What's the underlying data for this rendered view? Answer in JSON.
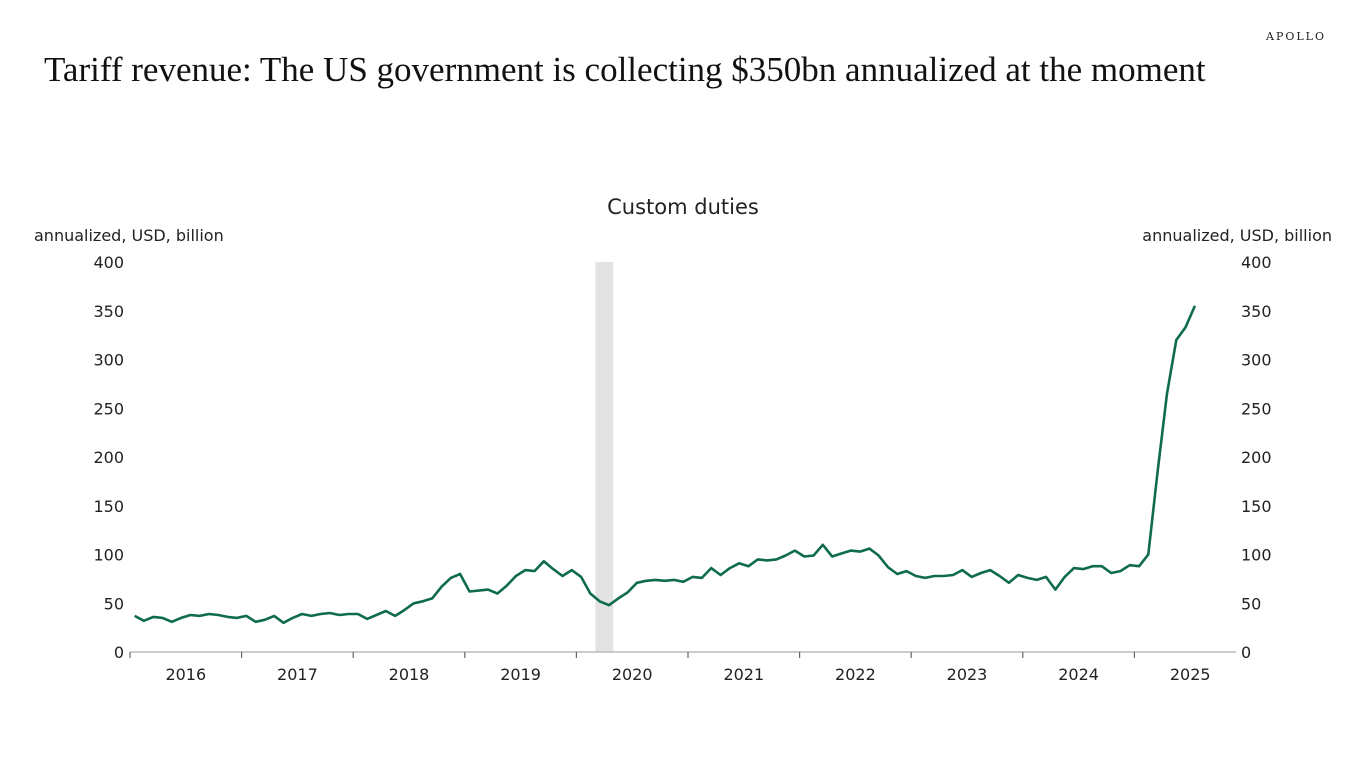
{
  "brand": "APOLLO",
  "title": "Tariff revenue: The US government is collecting $350bn annualized at the moment",
  "chart_data": {
    "type": "line",
    "title": "Custom duties",
    "ylabel_left": "annualized, USD, billion",
    "ylabel_right": "annualized, USD, billion",
    "ylim": [
      0,
      400
    ],
    "yticks": [
      0,
      50,
      100,
      150,
      200,
      250,
      300,
      350,
      400
    ],
    "xlim_years": [
      2016,
      2026
    ],
    "xtick_labels": [
      "2016",
      "2017",
      "2018",
      "2019",
      "2020",
      "2021",
      "2022",
      "2023",
      "2024",
      "2025"
    ],
    "recession_shading": {
      "start": 2020.17,
      "end": 2020.33
    },
    "start": "2016-01",
    "frequency": "monthly",
    "series": [
      {
        "name": "Custom duties",
        "color": "#0f6b4f",
        "values": [
          37,
          32,
          36,
          35,
          31,
          35,
          38,
          37,
          39,
          38,
          36,
          35,
          37,
          31,
          33,
          37,
          30,
          35,
          39,
          37,
          39,
          40,
          38,
          39,
          39,
          34,
          38,
          42,
          37,
          43,
          50,
          52,
          55,
          67,
          76,
          80,
          62,
          63,
          64,
          60,
          68,
          78,
          84,
          83,
          93,
          85,
          78,
          84,
          77,
          60,
          52,
          48,
          55,
          61,
          71,
          73,
          74,
          73,
          74,
          72,
          77,
          76,
          86,
          79,
          86,
          91,
          88,
          95,
          94,
          95,
          99,
          104,
          98,
          99,
          110,
          98,
          101,
          104,
          103,
          106,
          99,
          87,
          80,
          83,
          78,
          76,
          78,
          78,
          79,
          84,
          77,
          81,
          84,
          78,
          71,
          79,
          76,
          74,
          77,
          64,
          77,
          86,
          85,
          88,
          88,
          81,
          83,
          89,
          88,
          100,
          185,
          265,
          320,
          333,
          355
        ]
      }
    ]
  }
}
